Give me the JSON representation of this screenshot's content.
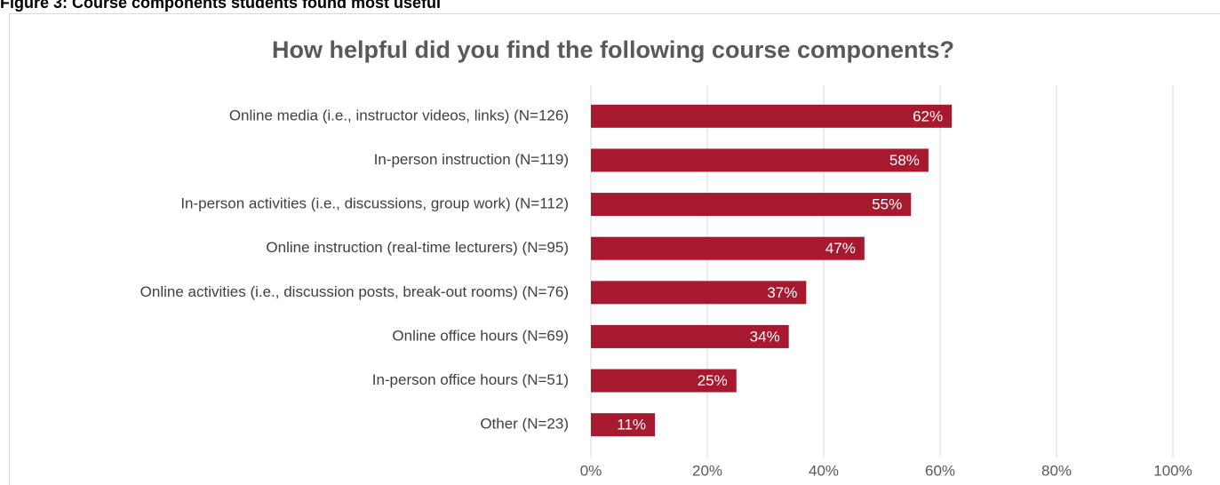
{
  "caption": "Figure 3: Course components students found most useful",
  "chart_data": {
    "type": "hbar",
    "title": "How helpful did you find the following course components?",
    "categories": [
      "Online media (i.e., instructor videos, links) (N=126)",
      "In-person instruction (N=119)",
      "In-person activities (i.e., discussions, group work) (N=112)",
      "Online instruction (real-time lecturers) (N=95)",
      "Online activities (i.e., discussion posts, break-out rooms) (N=76)",
      "Online office hours (N=69)",
      "In-person office hours (N=51)",
      "Other (N=23)"
    ],
    "values": [
      62,
      58,
      55,
      47,
      37,
      34,
      25,
      11
    ],
    "value_labels": [
      "62%",
      "58%",
      "55%",
      "47%",
      "37%",
      "34%",
      "25%",
      "11%"
    ],
    "color": "#a6192e",
    "xlim": [
      0,
      100
    ],
    "xticks": [
      {
        "value": 0,
        "label": "0%"
      },
      {
        "value": 20,
        "label": "20%"
      },
      {
        "value": 40,
        "label": "40%"
      },
      {
        "value": 60,
        "label": "60%"
      },
      {
        "value": 80,
        "label": "80%"
      },
      {
        "value": 100,
        "label": "100%"
      }
    ],
    "grid": true
  }
}
